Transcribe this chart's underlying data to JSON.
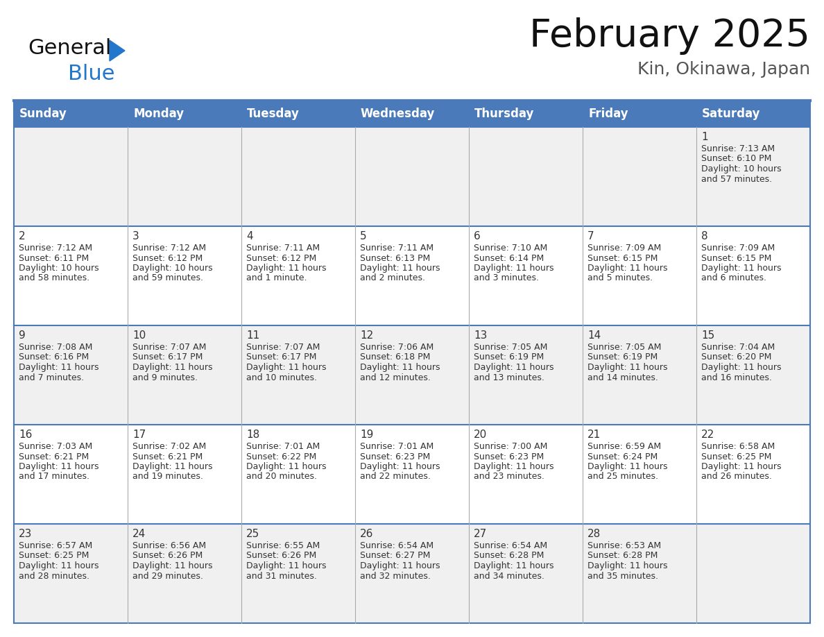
{
  "title": "February 2025",
  "subtitle": "Kin, Okinawa, Japan",
  "header_bg": "#4a7aba",
  "header_text_color": "#ffffff",
  "day_names": [
    "Sunday",
    "Monday",
    "Tuesday",
    "Wednesday",
    "Thursday",
    "Friday",
    "Saturday"
  ],
  "row_bg": [
    "#f0f0f0",
    "#ffffff",
    "#f0f0f0",
    "#ffffff",
    "#f0f0f0"
  ],
  "border_color": "#4a7aba",
  "cell_divider_color": "#aaaaaa",
  "date_color": "#333333",
  "info_color": "#333333",
  "days": [
    {
      "date": 1,
      "col": 6,
      "row": 0,
      "sunrise": "7:13 AM",
      "sunset": "6:10 PM",
      "daylight_h": "10 hours",
      "daylight_m": "and 57 minutes."
    },
    {
      "date": 2,
      "col": 0,
      "row": 1,
      "sunrise": "7:12 AM",
      "sunset": "6:11 PM",
      "daylight_h": "10 hours",
      "daylight_m": "and 58 minutes."
    },
    {
      "date": 3,
      "col": 1,
      "row": 1,
      "sunrise": "7:12 AM",
      "sunset": "6:12 PM",
      "daylight_h": "10 hours",
      "daylight_m": "and 59 minutes."
    },
    {
      "date": 4,
      "col": 2,
      "row": 1,
      "sunrise": "7:11 AM",
      "sunset": "6:12 PM",
      "daylight_h": "11 hours",
      "daylight_m": "and 1 minute."
    },
    {
      "date": 5,
      "col": 3,
      "row": 1,
      "sunrise": "7:11 AM",
      "sunset": "6:13 PM",
      "daylight_h": "11 hours",
      "daylight_m": "and 2 minutes."
    },
    {
      "date": 6,
      "col": 4,
      "row": 1,
      "sunrise": "7:10 AM",
      "sunset": "6:14 PM",
      "daylight_h": "11 hours",
      "daylight_m": "and 3 minutes."
    },
    {
      "date": 7,
      "col": 5,
      "row": 1,
      "sunrise": "7:09 AM",
      "sunset": "6:15 PM",
      "daylight_h": "11 hours",
      "daylight_m": "and 5 minutes."
    },
    {
      "date": 8,
      "col": 6,
      "row": 1,
      "sunrise": "7:09 AM",
      "sunset": "6:15 PM",
      "daylight_h": "11 hours",
      "daylight_m": "and 6 minutes."
    },
    {
      "date": 9,
      "col": 0,
      "row": 2,
      "sunrise": "7:08 AM",
      "sunset": "6:16 PM",
      "daylight_h": "11 hours",
      "daylight_m": "and 7 minutes."
    },
    {
      "date": 10,
      "col": 1,
      "row": 2,
      "sunrise": "7:07 AM",
      "sunset": "6:17 PM",
      "daylight_h": "11 hours",
      "daylight_m": "and 9 minutes."
    },
    {
      "date": 11,
      "col": 2,
      "row": 2,
      "sunrise": "7:07 AM",
      "sunset": "6:17 PM",
      "daylight_h": "11 hours",
      "daylight_m": "and 10 minutes."
    },
    {
      "date": 12,
      "col": 3,
      "row": 2,
      "sunrise": "7:06 AM",
      "sunset": "6:18 PM",
      "daylight_h": "11 hours",
      "daylight_m": "and 12 minutes."
    },
    {
      "date": 13,
      "col": 4,
      "row": 2,
      "sunrise": "7:05 AM",
      "sunset": "6:19 PM",
      "daylight_h": "11 hours",
      "daylight_m": "and 13 minutes."
    },
    {
      "date": 14,
      "col": 5,
      "row": 2,
      "sunrise": "7:05 AM",
      "sunset": "6:19 PM",
      "daylight_h": "11 hours",
      "daylight_m": "and 14 minutes."
    },
    {
      "date": 15,
      "col": 6,
      "row": 2,
      "sunrise": "7:04 AM",
      "sunset": "6:20 PM",
      "daylight_h": "11 hours",
      "daylight_m": "and 16 minutes."
    },
    {
      "date": 16,
      "col": 0,
      "row": 3,
      "sunrise": "7:03 AM",
      "sunset": "6:21 PM",
      "daylight_h": "11 hours",
      "daylight_m": "and 17 minutes."
    },
    {
      "date": 17,
      "col": 1,
      "row": 3,
      "sunrise": "7:02 AM",
      "sunset": "6:21 PM",
      "daylight_h": "11 hours",
      "daylight_m": "and 19 minutes."
    },
    {
      "date": 18,
      "col": 2,
      "row": 3,
      "sunrise": "7:01 AM",
      "sunset": "6:22 PM",
      "daylight_h": "11 hours",
      "daylight_m": "and 20 minutes."
    },
    {
      "date": 19,
      "col": 3,
      "row": 3,
      "sunrise": "7:01 AM",
      "sunset": "6:23 PM",
      "daylight_h": "11 hours",
      "daylight_m": "and 22 minutes."
    },
    {
      "date": 20,
      "col": 4,
      "row": 3,
      "sunrise": "7:00 AM",
      "sunset": "6:23 PM",
      "daylight_h": "11 hours",
      "daylight_m": "and 23 minutes."
    },
    {
      "date": 21,
      "col": 5,
      "row": 3,
      "sunrise": "6:59 AM",
      "sunset": "6:24 PM",
      "daylight_h": "11 hours",
      "daylight_m": "and 25 minutes."
    },
    {
      "date": 22,
      "col": 6,
      "row": 3,
      "sunrise": "6:58 AM",
      "sunset": "6:25 PM",
      "daylight_h": "11 hours",
      "daylight_m": "and 26 minutes."
    },
    {
      "date": 23,
      "col": 0,
      "row": 4,
      "sunrise": "6:57 AM",
      "sunset": "6:25 PM",
      "daylight_h": "11 hours",
      "daylight_m": "and 28 minutes."
    },
    {
      "date": 24,
      "col": 1,
      "row": 4,
      "sunrise": "6:56 AM",
      "sunset": "6:26 PM",
      "daylight_h": "11 hours",
      "daylight_m": "and 29 minutes."
    },
    {
      "date": 25,
      "col": 2,
      "row": 4,
      "sunrise": "6:55 AM",
      "sunset": "6:26 PM",
      "daylight_h": "11 hours",
      "daylight_m": "and 31 minutes."
    },
    {
      "date": 26,
      "col": 3,
      "row": 4,
      "sunrise": "6:54 AM",
      "sunset": "6:27 PM",
      "daylight_h": "11 hours",
      "daylight_m": "and 32 minutes."
    },
    {
      "date": 27,
      "col": 4,
      "row": 4,
      "sunrise": "6:54 AM",
      "sunset": "6:28 PM",
      "daylight_h": "11 hours",
      "daylight_m": "and 34 minutes."
    },
    {
      "date": 28,
      "col": 5,
      "row": 4,
      "sunrise": "6:53 AM",
      "sunset": "6:28 PM",
      "daylight_h": "11 hours",
      "daylight_m": "and 35 minutes."
    }
  ],
  "logo_text1": "General",
  "logo_text2": "Blue",
  "logo_color1": "#111111",
  "logo_color2": "#2277cc",
  "logo_triangle_color": "#2277cc",
  "fig_width": 11.88,
  "fig_height": 9.18,
  "dpi": 100
}
